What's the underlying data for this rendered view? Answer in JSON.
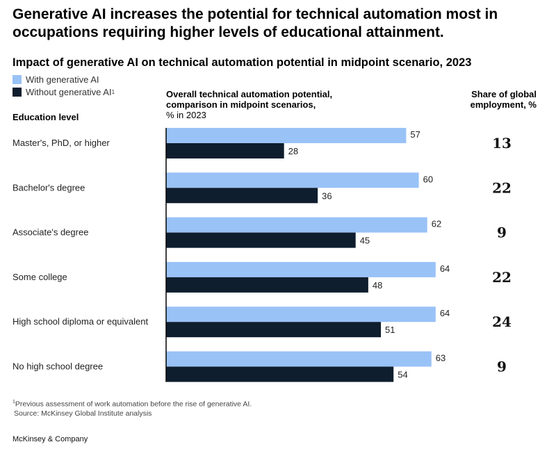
{
  "title": "Generative AI increases the potential for technical automation most in occupations requiring higher levels of educational attainment.",
  "subtitle": "Impact of generative AI on technical automation potential in midpoint scenario, 2023",
  "legend": {
    "with_label": "With generative AI",
    "without_label": "Without generative AI",
    "without_sup": "1"
  },
  "headers": {
    "education": "Education level",
    "automation_line1": "Overall technical automation potential,",
    "automation_line2": "comparison in midpoint scenarios,",
    "automation_line3": "% in 2023",
    "share_line1": "Share of global",
    "share_line2": "employment, %"
  },
  "colors": {
    "with": "#99c2f7",
    "without": "#0f1e2e",
    "axis": "#000000"
  },
  "chart_data": {
    "type": "bar",
    "orientation": "horizontal",
    "categories": [
      "Master's, PhD, or higher",
      "Bachelor's degree",
      "Associate's degree",
      "Some college",
      "High school diploma or equivalent",
      "No high school degree"
    ],
    "series": [
      {
        "name": "With generative AI",
        "values": [
          57,
          60,
          62,
          64,
          64,
          63
        ]
      },
      {
        "name": "Without generative AI",
        "values": [
          28,
          36,
          45,
          48,
          51,
          54
        ]
      }
    ],
    "share_of_global_employment": [
      13,
      22,
      9,
      22,
      24,
      9
    ],
    "xlim": [
      0,
      100
    ],
    "xlabel": "Overall technical automation potential, comparison in midpoint scenarios, % in 2023",
    "ylabel": "Education level"
  },
  "footnote": {
    "sup": "1",
    "text": "Previous assessment of work automation before the rise of generative AI.",
    "source": "Source: McKinsey Global Institute analysis"
  },
  "brand": "McKinsey & Company"
}
